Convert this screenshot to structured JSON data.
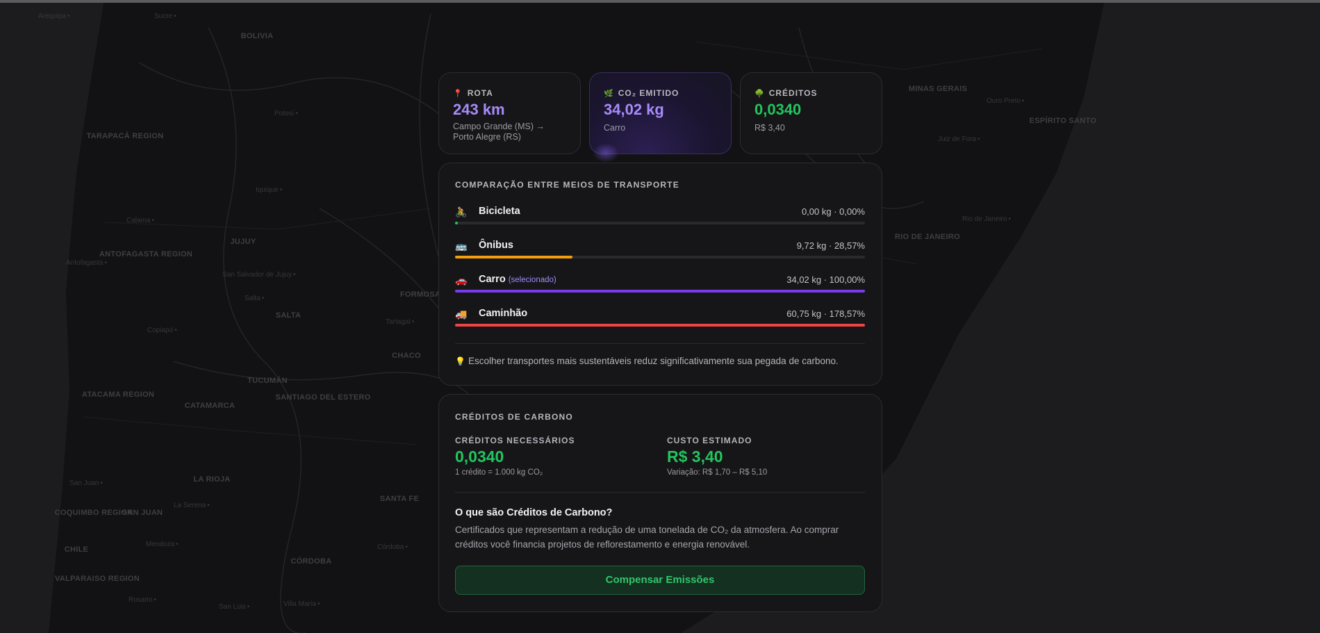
{
  "map": {
    "regions": [
      "BOLIVIA",
      "TARAPACÁ REGION",
      "ANTOFAGASTA REGION",
      "JUJUY",
      "SALTA",
      "FORMOSA",
      "CHACO",
      "TUCUMÁN",
      "ATACAMA REGION",
      "CATAMARCA",
      "SANTIAGO DEL ESTERO",
      "LA RIOJA",
      "COQUIMBO REGION",
      "SAN JUAN",
      "SANTA FE",
      "CHILE",
      "VALPARAISO REGION",
      "CÓRDOBA",
      "MINAS GERAIS",
      "ESPÍRITO SANTO",
      "RIO DE JANEIRO"
    ],
    "cities": [
      "Arequipa",
      "Sucre",
      "Potosí",
      "Iquique",
      "Calama",
      "Antofagasta",
      "San Salvador de Jujuy",
      "Salta",
      "Tartagal",
      "Copiapó",
      "La Serena",
      "San Juan",
      "Mendoza",
      "Rosario",
      "Córdoba",
      "San Luis",
      "Villa María",
      "Ouro Preto",
      "Juiz de Fora",
      "Rio de Janeiro"
    ]
  },
  "stats": {
    "route": {
      "icon": "📍",
      "label": "ROTA",
      "value": "243 km",
      "sub": "Campo Grande (MS) → Porto Alegre (RS)"
    },
    "co2": {
      "icon": "🌿",
      "label": "CO₂ EMITIDO",
      "value": "34,02 kg",
      "sub": "Carro"
    },
    "credits": {
      "icon": "🌳",
      "label": "CRÉDITOS",
      "value": "0,0340",
      "sub": "R$ 3,40"
    }
  },
  "comparison": {
    "title": "COMPARAÇÃO ENTRE MEIOS DE TRANSPORTE",
    "modes": [
      {
        "icon": "🚴",
        "name": "Bicicleta",
        "selected_label": "",
        "value": "0,00 kg · 0,00%",
        "fraction": 0.006,
        "color": "#22c55e"
      },
      {
        "icon": "🚌",
        "name": "Ônibus",
        "selected_label": "",
        "value": "9,72 kg · 28,57%",
        "fraction": 0.2857,
        "color": "#f59e0b"
      },
      {
        "icon": "🚗",
        "name": "Carro",
        "selected_label": "(selecionado)",
        "value": "34,02 kg · 100,00%",
        "fraction": 1.0,
        "color": "#7c3aed"
      },
      {
        "icon": "🚚",
        "name": "Caminhão",
        "selected_label": "",
        "value": "60,75 kg · 178,57%",
        "fraction": 1.0,
        "color": "#ef4444"
      }
    ],
    "tip_icon": "💡",
    "tip": "Escolher transportes mais sustentáveis reduz significativamente sua pegada de carbono."
  },
  "carbon": {
    "title": "CRÉDITOS DE CARBONO",
    "needed_label": "CRÉDITOS NECESSÁRIOS",
    "needed_value": "0,0340",
    "needed_note": "1 crédito = 1.000 kg CO₂",
    "cost_label": "CUSTO ESTIMADO",
    "cost_value": "R$ 3,40",
    "cost_note": "Variação: R$ 1,70 – R$ 5,10",
    "what_title": "O que são Créditos de Carbono?",
    "what_text": "Certificados que representam a redução de uma tonelada de CO₂ da atmosfera. Ao comprar créditos você financia projetos de reflorestamento e energia renovável.",
    "cta": "Compensar Emissões"
  }
}
